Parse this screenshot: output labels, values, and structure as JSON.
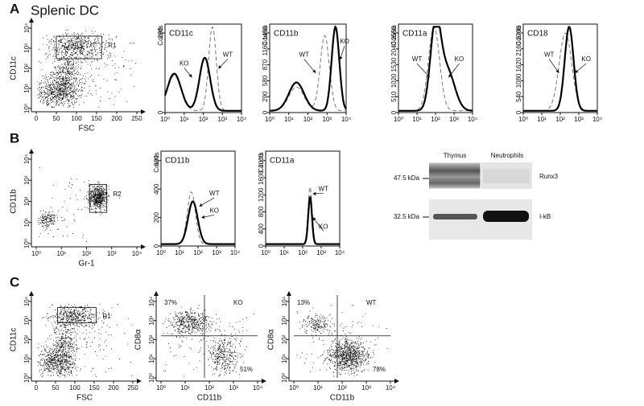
{
  "panels": [
    {
      "label": "A",
      "title": "Splenic DC",
      "plots": [
        {
          "gate": "R1",
          "ylabel": "CD11c",
          "xlabel": "FSC",
          "xticks": [
            "0",
            "50",
            "100",
            "150",
            "200",
            "250"
          ],
          "yticks": [
            "10⁰",
            "10¹",
            "10²",
            "10³",
            "10⁴"
          ]
        },
        {
          "marker": "CD11c",
          "ylabel": "Counts",
          "yticks": [
            "0",
            "290"
          ],
          "xticks": [
            "10⁰",
            "10¹",
            "10²",
            "10³",
            "10⁴"
          ],
          "wt": "WT",
          "ko": "KO"
        },
        {
          "marker": "CD11b",
          "ylabel": "Counts",
          "yticks": [
            "0",
            "290",
            "580",
            "870",
            "1160",
            "1450"
          ],
          "xticks": [
            "10⁰",
            "10¹",
            "10²",
            "10³",
            "10⁴"
          ],
          "wt": "WT",
          "ko": "KO"
        },
        {
          "marker": "CD11a",
          "ylabel": "Counts",
          "yticks": [
            "0",
            "510",
            "1020",
            "1530",
            "2040",
            "2550"
          ],
          "xticks": [
            "10⁰",
            "10¹",
            "10²",
            "10³",
            "10⁴"
          ],
          "wt": "WT",
          "ko": "KO"
        },
        {
          "marker": "CD18",
          "ylabel": "Counts",
          "yticks": [
            "0",
            "540",
            "1080",
            "1620",
            "2160",
            "2700"
          ],
          "xticks": [
            "10⁰",
            "10¹",
            "10²",
            "10³",
            "10⁴"
          ],
          "wt": "WT",
          "ko": "KO"
        }
      ]
    },
    {
      "label": "B",
      "plots": [
        {
          "gate": "R2",
          "ylabel": "CD11b",
          "xlabel": "Gr-1",
          "xticks": [
            "10⁰",
            "10¹",
            "10²",
            "10³",
            "10⁴"
          ],
          "yticks": [
            "10⁰",
            "10¹",
            "10²",
            "10³",
            "10⁴"
          ]
        },
        {
          "marker": "CD11b",
          "ylabel": "Counts",
          "yticks": [
            "0",
            "200",
            "400",
            "600"
          ],
          "xticks": [
            "10⁰",
            "10¹",
            "10²",
            "10³",
            "10⁴"
          ],
          "wt": "WT",
          "ko": "KO"
        },
        {
          "marker": "CD11a",
          "ylabel": "Counts",
          "yticks": [
            "0",
            "400",
            "800",
            "1200",
            "1600",
            "2000"
          ],
          "xticks": [
            "10⁰",
            "10¹",
            "10²",
            "10³",
            "10⁴"
          ],
          "wt": "WT",
          "ko": "KO"
        }
      ],
      "blot": {
        "lanes": [
          "Thymus",
          "Neutrophils"
        ],
        "sizes": [
          "47.5 kDa",
          "32.5 kDa"
        ],
        "proteins": [
          "Runx3",
          "I-kB"
        ]
      }
    },
    {
      "label": "C",
      "plots": [
        {
          "gate": "R1",
          "ylabel": "CD11c",
          "xlabel": "FSC",
          "xticks": [
            "0",
            "50",
            "100",
            "150",
            "200",
            "250"
          ],
          "yticks": [
            "10⁰",
            "10¹",
            "10²",
            "10³",
            "10⁴"
          ]
        },
        {
          "ylabel": "CD8α",
          "xlabel": "CD11b",
          "xticks": [
            "10⁰",
            "10¹",
            "10²",
            "10³",
            "10⁴"
          ],
          "yticks": [
            "10⁰",
            "10¹",
            "10²",
            "10³",
            "10⁴"
          ],
          "upper_left": "37%",
          "upper_right": "KO",
          "lower_right": "51%"
        },
        {
          "ylabel": "CD8α",
          "xlabel": "CD11b",
          "xticks": [
            "10⁰",
            "10¹",
            "10²",
            "10³",
            "10⁴"
          ],
          "yticks": [
            "10⁰",
            "10¹",
            "10²",
            "10³",
            "10⁴"
          ],
          "upper_left": "13%",
          "upper_right": "WT",
          "lower_right": "78%"
        }
      ]
    }
  ]
}
